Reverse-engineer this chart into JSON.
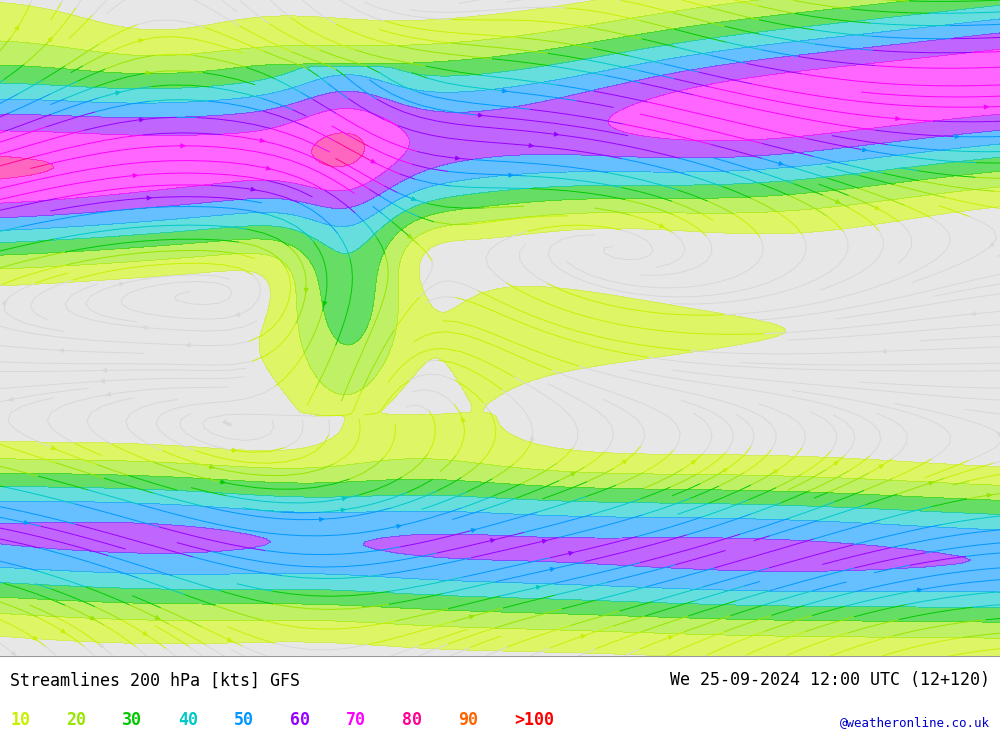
{
  "title_left": "Streamlines 200 hPa [kts] GFS",
  "title_right": "We 25-09-2024 12:00 UTC (12+120)",
  "watermark": "@weatheronline.co.uk",
  "legend_colors_list": [
    [
      "#c8f000",
      "10"
    ],
    [
      "#96e600",
      "20"
    ],
    [
      "#00c800",
      "30"
    ],
    [
      "#00c8c8",
      "40"
    ],
    [
      "#0096ff",
      "50"
    ],
    [
      "#9600ff",
      "60"
    ],
    [
      "#ff00ff",
      "70"
    ],
    [
      "#ff0096",
      "80"
    ],
    [
      "#ff6400",
      "90"
    ],
    [
      "#ff0000",
      ">100"
    ]
  ],
  "speed_colormap_colors": [
    "#d8d8d8",
    "#c8f000",
    "#96e600",
    "#00c800",
    "#00c8c8",
    "#0096ff",
    "#9600ff",
    "#ff00ff",
    "#ff0096",
    "#ff6400",
    "#ff0000"
  ],
  "speed_boundaries": [
    0,
    10,
    20,
    30,
    40,
    50,
    60,
    70,
    80,
    90,
    100,
    200
  ],
  "map_bg_color": "#d8d8d8",
  "sea_color": "#e8e8e8",
  "land_color": "#c8c8c8",
  "fig_width": 10.0,
  "fig_height": 7.33,
  "dpi": 100,
  "lon_min": -170,
  "lon_max": 30,
  "lat_min": -75,
  "lat_max": 75,
  "bottom_bar_height": 0.105,
  "title_fontsize": 12,
  "legend_fontsize": 12,
  "watermark_fontsize": 9,
  "watermark_color": "#0000cc"
}
